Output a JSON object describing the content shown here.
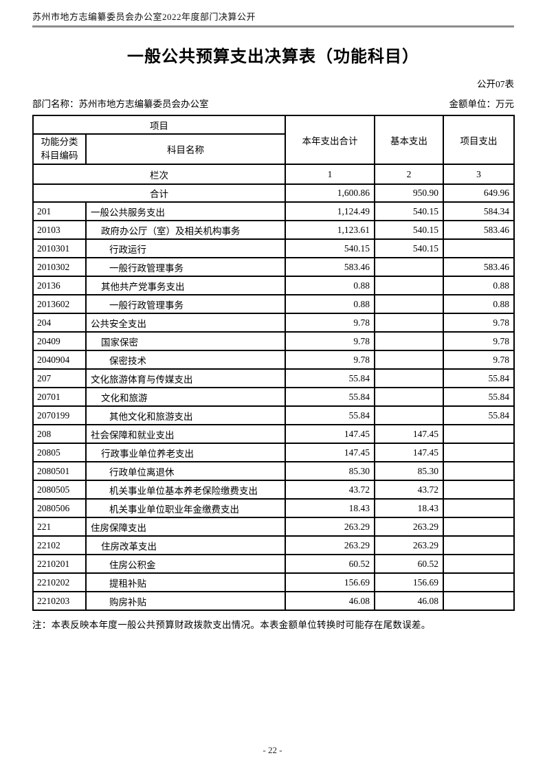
{
  "page": {
    "header_text": "苏州市地方志编纂委员会办公室2022年度部门决算公开",
    "title": "一般公共预算支出决算表（功能科目）",
    "table_code": "公开07表",
    "department_label": "部门名称：苏州市地方志编纂委员会办公室",
    "unit_label": "金额单位：万元",
    "note": "注：本表反映本年度一般公共预算财政拨款支出情况。本表金额单位转换时可能存在尾数误差。",
    "page_number": "- 22 -"
  },
  "table": {
    "header": {
      "project": "项目",
      "code_label_line1": "功能分类",
      "code_label_line2": "科目编码",
      "name_label": "科目名称",
      "col_total": "本年支出合计",
      "col_basic": "基本支出",
      "col_project": "项目支出",
      "lanci": "栏次",
      "col_numbers": [
        "1",
        "2",
        "3"
      ]
    },
    "total_row": {
      "label": "合计",
      "total": "1,600.86",
      "basic": "950.90",
      "project": "649.96"
    },
    "rows": [
      {
        "code": "201",
        "name": "一般公共服务支出",
        "indent": 0,
        "total": "1,124.49",
        "basic": "540.15",
        "project": "584.34"
      },
      {
        "code": "20103",
        "name": "政府办公厅（室）及相关机构事务",
        "indent": 1,
        "total": "1,123.61",
        "basic": "540.15",
        "project": "583.46"
      },
      {
        "code": "2010301",
        "name": "行政运行",
        "indent": 2,
        "total": "540.15",
        "basic": "540.15",
        "project": ""
      },
      {
        "code": "2010302",
        "name": "一般行政管理事务",
        "indent": 2,
        "total": "583.46",
        "basic": "",
        "project": "583.46"
      },
      {
        "code": "20136",
        "name": "其他共产党事务支出",
        "indent": 1,
        "total": "0.88",
        "basic": "",
        "project": "0.88"
      },
      {
        "code": "2013602",
        "name": "一般行政管理事务",
        "indent": 2,
        "total": "0.88",
        "basic": "",
        "project": "0.88"
      },
      {
        "code": "204",
        "name": "公共安全支出",
        "indent": 0,
        "total": "9.78",
        "basic": "",
        "project": "9.78"
      },
      {
        "code": "20409",
        "name": "国家保密",
        "indent": 1,
        "total": "9.78",
        "basic": "",
        "project": "9.78"
      },
      {
        "code": "2040904",
        "name": "保密技术",
        "indent": 2,
        "total": "9.78",
        "basic": "",
        "project": "9.78"
      },
      {
        "code": "207",
        "name": "文化旅游体育与传媒支出",
        "indent": 0,
        "total": "55.84",
        "basic": "",
        "project": "55.84"
      },
      {
        "code": "20701",
        "name": "文化和旅游",
        "indent": 1,
        "total": "55.84",
        "basic": "",
        "project": "55.84"
      },
      {
        "code": "2070199",
        "name": "其他文化和旅游支出",
        "indent": 2,
        "total": "55.84",
        "basic": "",
        "project": "55.84"
      },
      {
        "code": "208",
        "name": "社会保障和就业支出",
        "indent": 0,
        "total": "147.45",
        "basic": "147.45",
        "project": ""
      },
      {
        "code": "20805",
        "name": "行政事业单位养老支出",
        "indent": 1,
        "total": "147.45",
        "basic": "147.45",
        "project": ""
      },
      {
        "code": "2080501",
        "name": "行政单位离退休",
        "indent": 2,
        "total": "85.30",
        "basic": "85.30",
        "project": ""
      },
      {
        "code": "2080505",
        "name": "机关事业单位基本养老保险缴费支出",
        "indent": 2,
        "total": "43.72",
        "basic": "43.72",
        "project": ""
      },
      {
        "code": "2080506",
        "name": "机关事业单位职业年金缴费支出",
        "indent": 2,
        "total": "18.43",
        "basic": "18.43",
        "project": ""
      },
      {
        "code": "221",
        "name": "住房保障支出",
        "indent": 0,
        "total": "263.29",
        "basic": "263.29",
        "project": ""
      },
      {
        "code": "22102",
        "name": "住房改革支出",
        "indent": 1,
        "total": "263.29",
        "basic": "263.29",
        "project": ""
      },
      {
        "code": "2210201",
        "name": "住房公积金",
        "indent": 2,
        "total": "60.52",
        "basic": "60.52",
        "project": ""
      },
      {
        "code": "2210202",
        "name": "提租补贴",
        "indent": 2,
        "total": "156.69",
        "basic": "156.69",
        "project": ""
      },
      {
        "code": "2210203",
        "name": "购房补贴",
        "indent": 2,
        "total": "46.08",
        "basic": "46.08",
        "project": ""
      }
    ]
  }
}
